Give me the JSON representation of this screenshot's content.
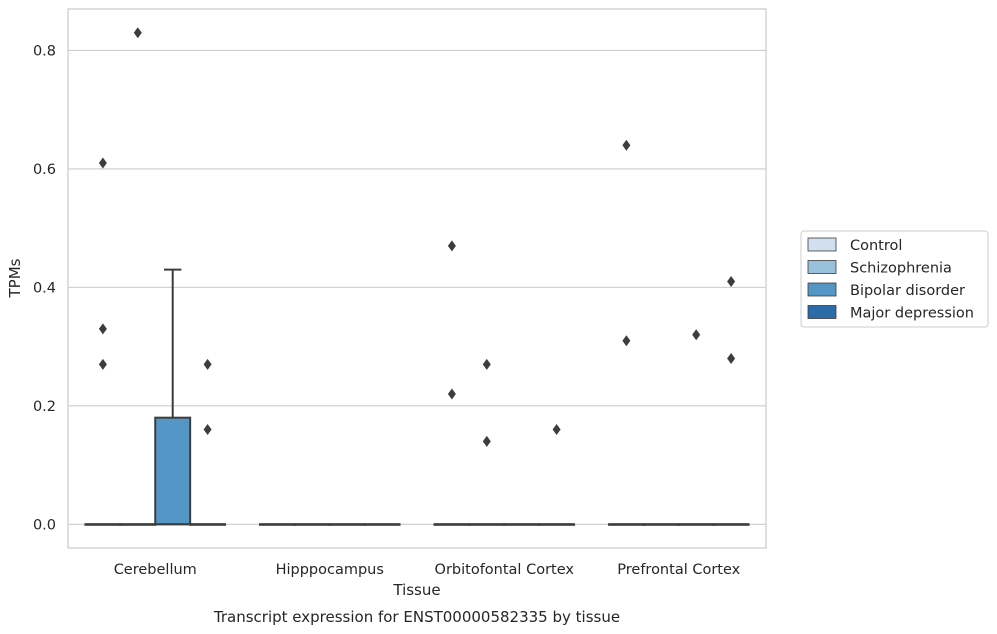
{
  "chart_data": {
    "type": "box",
    "caption": "Transcript expression for ENST00000582335 by tissue",
    "xlabel": "Tissue",
    "ylabel": "TPMs",
    "ylim": [
      -0.04,
      0.87
    ],
    "yticks": [
      0.0,
      0.2,
      0.4,
      0.6,
      0.8
    ],
    "ytick_labels": [
      "0.0",
      "0.2",
      "0.4",
      "0.6",
      "0.8"
    ],
    "grid": "horizontal",
    "legend_position": "center-right",
    "categories": [
      "Cerebellum",
      "Hipppocampus",
      "Orbitofontal Cortex",
      "Prefrontal Cortex"
    ],
    "series": [
      {
        "name": "Control",
        "color": "#d1e0ef",
        "boxes": [
          {
            "q1": 0,
            "median": 0,
            "q3": 0,
            "whisker_low": 0,
            "whisker_high": 0,
            "outliers": [
              0.61,
              0.33,
              0.27
            ]
          },
          {
            "q1": 0,
            "median": 0,
            "q3": 0,
            "whisker_low": 0,
            "whisker_high": 0,
            "outliers": []
          },
          {
            "q1": 0,
            "median": 0,
            "q3": 0,
            "whisker_low": 0,
            "whisker_high": 0,
            "outliers": [
              0.47,
              0.22
            ]
          },
          {
            "q1": 0,
            "median": 0,
            "q3": 0,
            "whisker_low": 0,
            "whisker_high": 0,
            "outliers": [
              0.64,
              0.31
            ]
          }
        ]
      },
      {
        "name": "Schizophrenia",
        "color": "#9ac1dc",
        "boxes": [
          {
            "q1": 0,
            "median": 0,
            "q3": 0,
            "whisker_low": 0,
            "whisker_high": 0,
            "outliers": [
              0.83
            ]
          },
          {
            "q1": 0,
            "median": 0,
            "q3": 0,
            "whisker_low": 0,
            "whisker_high": 0,
            "outliers": []
          },
          {
            "q1": 0,
            "median": 0,
            "q3": 0,
            "whisker_low": 0,
            "whisker_high": 0,
            "outliers": [
              0.27,
              0.14
            ]
          },
          {
            "q1": 0,
            "median": 0,
            "q3": 0,
            "whisker_low": 0,
            "whisker_high": 0,
            "outliers": []
          }
        ]
      },
      {
        "name": "Bipolar disorder",
        "color": "#5496c5",
        "boxes": [
          {
            "q1": 0,
            "median": 0,
            "q3": 0.18,
            "whisker_low": 0,
            "whisker_high": 0.43,
            "outliers": []
          },
          {
            "q1": 0,
            "median": 0,
            "q3": 0,
            "whisker_low": 0,
            "whisker_high": 0,
            "outliers": []
          },
          {
            "q1": 0,
            "median": 0,
            "q3": 0,
            "whisker_low": 0,
            "whisker_high": 0,
            "outliers": []
          },
          {
            "q1": 0,
            "median": 0,
            "q3": 0,
            "whisker_low": 0,
            "whisker_high": 0,
            "outliers": [
              0.32
            ]
          }
        ]
      },
      {
        "name": "Major depression",
        "color": "#2b6ba8",
        "boxes": [
          {
            "q1": 0,
            "median": 0,
            "q3": 0,
            "whisker_low": 0,
            "whisker_high": 0,
            "outliers": [
              0.27,
              0.16
            ]
          },
          {
            "q1": 0,
            "median": 0,
            "q3": 0,
            "whisker_low": 0,
            "whisker_high": 0,
            "outliers": []
          },
          {
            "q1": 0,
            "median": 0,
            "q3": 0,
            "whisker_low": 0,
            "whisker_high": 0,
            "outliers": [
              0.16
            ]
          },
          {
            "q1": 0,
            "median": 0,
            "q3": 0,
            "whisker_low": 0,
            "whisker_high": 0,
            "outliers": [
              0.41,
              0.28
            ]
          }
        ]
      }
    ]
  }
}
